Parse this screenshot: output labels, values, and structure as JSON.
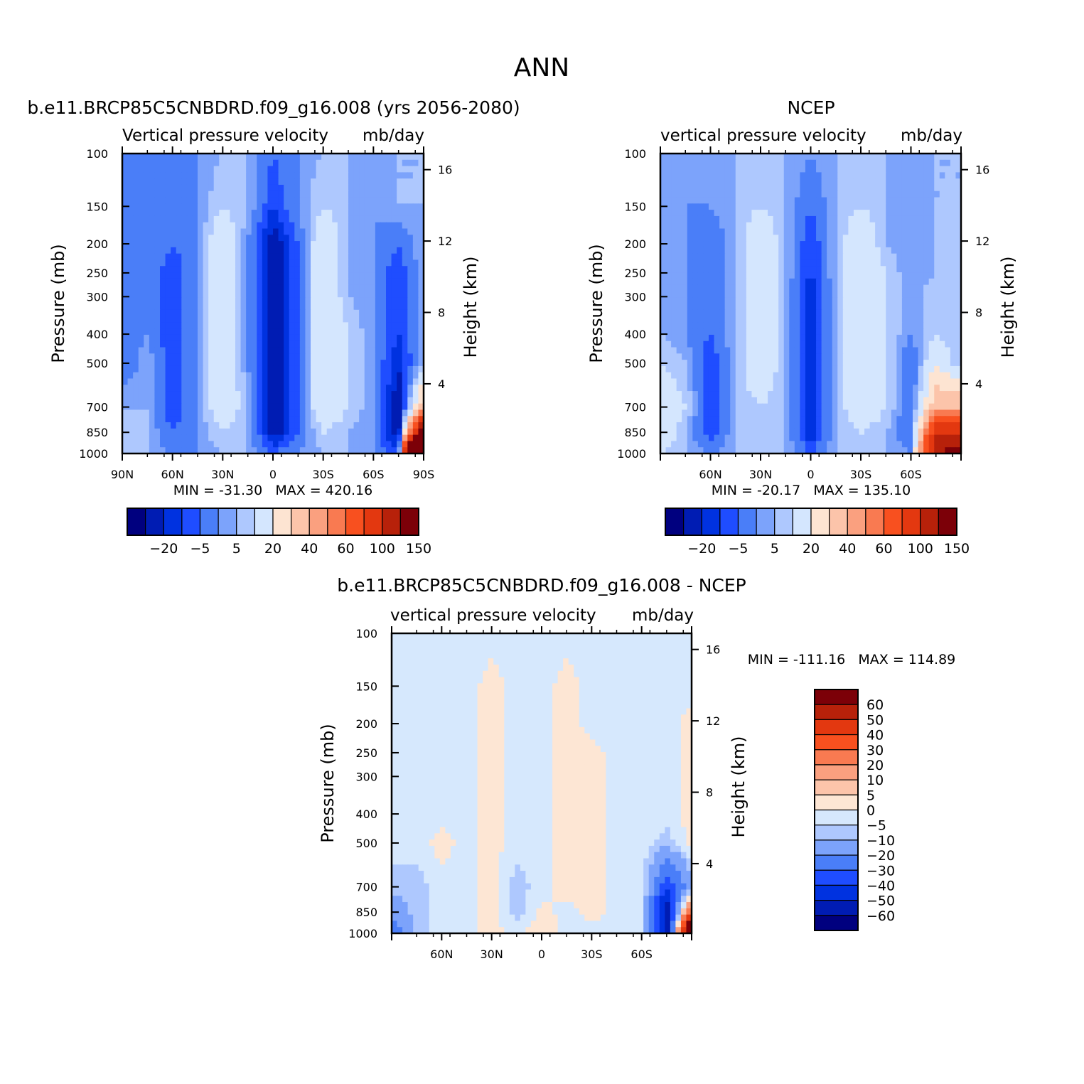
{
  "figure_title": "ANN",
  "colors": {
    "contour_levels": [
      "#00007f",
      "#001cb3",
      "#0032e0",
      "#1f4dff",
      "#4a7ef8",
      "#7ca3fb",
      "#aec8fe",
      "#d4e6fe",
      "#fde4d2",
      "#fcc4aa",
      "#faa07f",
      "#f97a51",
      "#f8501f",
      "#e33810",
      "#b7210a",
      "#7c0008"
    ],
    "diff_levels": [
      "#00007f",
      "#001cb3",
      "#0032e0",
      "#1f4dff",
      "#4a7ef8",
      "#7ca3fb",
      "#aec8fe",
      "#d6e8fd",
      "#fde6d4",
      "#fcc4aa",
      "#faa07f",
      "#f97a51",
      "#f8501f",
      "#e33810",
      "#b7210a",
      "#7c0008"
    ]
  },
  "panels": {
    "model": {
      "title": "b.e11.BRCP85C5CNBDRD.f09_g16.008 (yrs 2056-2080)",
      "subtitle_left": "Vertical pressure velocity",
      "subtitle_right": "mb/day",
      "min_max": "MIN = -31.30   MAX = 420.16"
    },
    "obs": {
      "title": "NCEP",
      "subtitle_left": "vertical pressure velocity",
      "subtitle_right": "mb/day",
      "min_max": "MIN = -20.17   MAX = 135.10"
    },
    "diff": {
      "title": "b.e11.BRCP85C5CNBDRD.f09_g16.008 - NCEP",
      "subtitle_left": "vertical pressure velocity",
      "subtitle_right": "mb/day",
      "min_max": "MIN = -111.16   MAX = 114.89"
    }
  },
  "axes": {
    "ylabel": "Pressure (mb)",
    "y2label": "Height (km)",
    "pressure_ticks": [
      "100",
      "150",
      "200",
      "250",
      "300",
      "400",
      "500",
      "700",
      "850",
      "1000"
    ],
    "height_ticks": [
      "16",
      "12",
      "8",
      "4"
    ],
    "lat_ticks_full": [
      "90N",
      "60N",
      "30N",
      "0",
      "30S",
      "60S",
      "90S"
    ],
    "lat_ticks_inner": [
      "60N",
      "30N",
      "0",
      "30S",
      "60S"
    ]
  },
  "colorbar_labels": [
    "-20",
    "-5",
    "5",
    "20",
    "40",
    "60",
    "100",
    "150"
  ],
  "diff_colorbar_labels": [
    "60",
    "50",
    "40",
    "30",
    "20",
    "10",
    "5",
    "0",
    "-5",
    "-10",
    "-20",
    "-30",
    "-40",
    "-50",
    "-60"
  ],
  "chart_data": [
    {
      "type": "heatmap",
      "title": "b.e11.BRCP85C5CNBDRD.f09_g16.008 (yrs 2056-2080)",
      "xlabel": "",
      "ylabel": "Pressure (mb)",
      "y2label": "Height (km)",
      "x": [
        90,
        75,
        60,
        45,
        30,
        15,
        0,
        -15,
        -30,
        -45,
        -60,
        -75,
        -90
      ],
      "xlim": [
        90,
        -90
      ],
      "y": [
        100,
        150,
        200,
        250,
        300,
        400,
        500,
        700,
        850,
        1000
      ],
      "ylim": [
        100,
        1000
      ],
      "yscale": "log",
      "values": [
        [
          -5,
          1,
          -5,
          1,
          5,
          5,
          -5,
          1,
          5,
          5,
          5,
          5,
          5
        ],
        [
          -5,
          1,
          -5,
          1,
          10,
          5,
          -10,
          1,
          10,
          5,
          1,
          5,
          5
        ],
        [
          -5,
          1,
          -5,
          1,
          20,
          1,
          -20,
          -5,
          20,
          5,
          1,
          -5,
          5
        ],
        [
          -5,
          1,
          -10,
          1,
          20,
          1,
          -20,
          -5,
          20,
          5,
          1,
          -10,
          5
        ],
        [
          -5,
          1,
          -10,
          1,
          20,
          1,
          -20,
          -5,
          20,
          5,
          1,
          -10,
          5
        ],
        [
          -5,
          1,
          -10,
          1,
          20,
          1,
          -20,
          -5,
          20,
          10,
          1,
          -10,
          5
        ],
        [
          -5,
          5,
          -10,
          1,
          20,
          1,
          -20,
          -5,
          20,
          10,
          1,
          -15,
          5
        ],
        [
          5,
          5,
          -10,
          1,
          20,
          5,
          -20,
          -5,
          20,
          10,
          1,
          -20,
          40
        ],
        [
          10,
          5,
          -5,
          1,
          10,
          5,
          -20,
          -5,
          10,
          5,
          1,
          -20,
          150
        ],
        [
          5,
          5,
          1,
          1,
          5,
          5,
          -5,
          1,
          5,
          5,
          1,
          -10,
          400
        ]
      ],
      "levels": [
        -25,
        -20,
        -15,
        -10,
        -5,
        1,
        5,
        10,
        20,
        30,
        40,
        50,
        60,
        80,
        100,
        120,
        150
      ]
    },
    {
      "type": "heatmap",
      "title": "NCEP",
      "xlabel": "",
      "ylabel": "Pressure (mb)",
      "y2label": "Height (km)",
      "x": [
        90,
        75,
        60,
        45,
        30,
        15,
        0,
        -15,
        -30,
        -45,
        -60,
        -75,
        -90
      ],
      "xlim": [
        90,
        -90
      ],
      "y": [
        100,
        150,
        200,
        250,
        300,
        400,
        500,
        700,
        850,
        1000
      ],
      "ylim": [
        100,
        1000
      ],
      "yscale": "log",
      "values": [
        [
          5,
          5,
          1,
          5,
          5,
          5,
          1,
          5,
          5,
          5,
          1,
          5,
          5
        ],
        [
          5,
          1,
          1,
          5,
          10,
          5,
          -5,
          5,
          10,
          5,
          1,
          5,
          5
        ],
        [
          5,
          1,
          -5,
          5,
          20,
          5,
          -10,
          5,
          20,
          5,
          1,
          5,
          5
        ],
        [
          5,
          1,
          -5,
          5,
          20,
          5,
          -10,
          5,
          20,
          10,
          1,
          5,
          5
        ],
        [
          5,
          1,
          -5,
          5,
          20,
          5,
          -15,
          5,
          20,
          10,
          1,
          10,
          5
        ],
        [
          5,
          1,
          -5,
          5,
          20,
          5,
          -15,
          5,
          20,
          10,
          1,
          10,
          5
        ],
        [
          10,
          5,
          -10,
          5,
          20,
          5,
          -15,
          5,
          20,
          10,
          -5,
          20,
          5
        ],
        [
          20,
          10,
          -10,
          5,
          10,
          5,
          -15,
          5,
          20,
          10,
          -5,
          40,
          40
        ],
        [
          20,
          5,
          -10,
          5,
          10,
          5,
          -15,
          5,
          10,
          5,
          -5,
          100,
          100
        ],
        [
          10,
          5,
          1,
          5,
          5,
          5,
          -5,
          5,
          5,
          5,
          1,
          120,
          130
        ]
      ],
      "levels": [
        -25,
        -20,
        -15,
        -10,
        -5,
        1,
        5,
        10,
        20,
        30,
        40,
        50,
        60,
        80,
        100,
        120,
        150
      ]
    },
    {
      "type": "heatmap",
      "title": "b.e11.BRCP85C5CNBDRD.f09_g16.008 - NCEP",
      "xlabel": "",
      "ylabel": "Pressure (mb)",
      "y2label": "Height (km)",
      "x": [
        90,
        75,
        60,
        45,
        30,
        15,
        0,
        -15,
        -30,
        -45,
        -60,
        -75,
        -90
      ],
      "xlim": [
        90,
        -90
      ],
      "y": [
        100,
        150,
        200,
        250,
        300,
        400,
        500,
        700,
        850,
        1000
      ],
      "ylim": [
        100,
        1000
      ],
      "yscale": "log",
      "values": [
        [
          -2,
          -2,
          -2,
          -2,
          -2,
          -2,
          -2,
          -2,
          -2,
          -2,
          -2,
          -2,
          -2
        ],
        [
          -2,
          -2,
          -2,
          -2,
          2,
          -2,
          -2,
          2,
          -2,
          -2,
          -2,
          -2,
          -2
        ],
        [
          -2,
          -2,
          -2,
          -2,
          2,
          -2,
          -2,
          2,
          -2,
          -2,
          -2,
          -2,
          2
        ],
        [
          -2,
          -2,
          -2,
          -2,
          2,
          -2,
          -2,
          2,
          2,
          -2,
          -2,
          -2,
          2
        ],
        [
          -2,
          -2,
          -2,
          -2,
          2,
          -2,
          -2,
          2,
          2,
          -2,
          -2,
          -2,
          2
        ],
        [
          -2,
          -2,
          -2,
          -2,
          2,
          -2,
          -2,
          2,
          2,
          -2,
          -2,
          -2,
          2
        ],
        [
          -2,
          -2,
          2,
          -2,
          2,
          -2,
          -2,
          2,
          2,
          -2,
          -2,
          -8,
          2
        ],
        [
          -8,
          -8,
          -2,
          -2,
          2,
          -8,
          -2,
          2,
          2,
          -2,
          -2,
          -40,
          -15
        ],
        [
          -15,
          -8,
          -2,
          -2,
          2,
          -8,
          2,
          -2,
          2,
          -2,
          -2,
          -60,
          40
        ],
        [
          -30,
          -8,
          -2,
          -2,
          2,
          -2,
          5,
          -2,
          -2,
          -2,
          -2,
          -60,
          110
        ]
      ],
      "levels": [
        -70,
        -60,
        -50,
        -40,
        -30,
        -20,
        -10,
        -5,
        0,
        5,
        10,
        20,
        30,
        40,
        50,
        60,
        70
      ]
    }
  ]
}
